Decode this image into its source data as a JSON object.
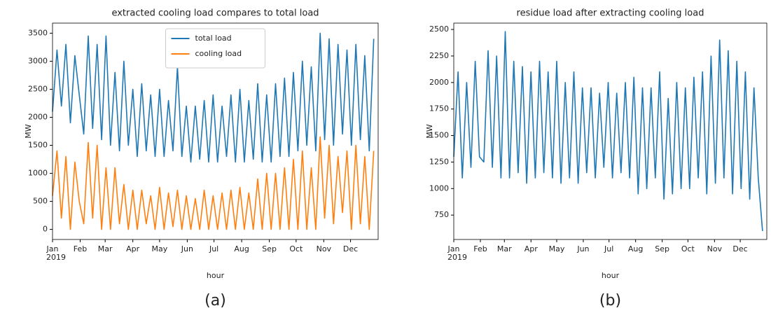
{
  "chart_data": [
    {
      "type": "line",
      "title": "extracted cooling load compares to total load",
      "caption": "(a)",
      "xlabel": "hour",
      "ylabel": "MW",
      "year_label": "2019",
      "legend": "upper center",
      "x": [
        0,
        120,
        240,
        360,
        480,
        600,
        720,
        840,
        960,
        1080,
        1200,
        1320,
        1440,
        1560,
        1680,
        1800,
        1920,
        2040,
        2160,
        2280,
        2400,
        2520,
        2640,
        2760,
        2880,
        3000,
        3120,
        3240,
        3360,
        3480,
        3600,
        3720,
        3840,
        3960,
        4080,
        4200,
        4320,
        4440,
        4560,
        4680,
        4800,
        4920,
        5040,
        5160,
        5280,
        5400,
        5520,
        5640,
        5760,
        5880,
        6000,
        6120,
        6240,
        6360,
        6480,
        6600,
        6720,
        6840,
        6960,
        7080,
        7200,
        7320,
        7440,
        7560,
        7680,
        7800,
        7920,
        8040,
        8160,
        8280,
        8400,
        8520,
        8640
      ],
      "xlim": [
        0,
        8759
      ],
      "xticks": [
        {
          "value": 0,
          "label": "Jan"
        },
        {
          "value": 744,
          "label": "Feb"
        },
        {
          "value": 1416,
          "label": "Mar"
        },
        {
          "value": 2160,
          "label": "Apr"
        },
        {
          "value": 2880,
          "label": "May"
        },
        {
          "value": 3624,
          "label": "Jun"
        },
        {
          "value": 4344,
          "label": "Jul"
        },
        {
          "value": 5088,
          "label": "Aug"
        },
        {
          "value": 5832,
          "label": "Sep"
        },
        {
          "value": 6552,
          "label": "Oct"
        },
        {
          "value": 7296,
          "label": "Nov"
        },
        {
          "value": 8016,
          "label": "Dec"
        }
      ],
      "ylim": [
        -180,
        3680
      ],
      "yticks": [
        0,
        500,
        1000,
        1500,
        2000,
        2500,
        3000,
        3500
      ],
      "series": [
        {
          "name": "total load",
          "color": "#1f77b4",
          "values": [
            2100,
            3200,
            2200,
            3300,
            1900,
            3100,
            2400,
            1700,
            3450,
            1800,
            3300,
            1600,
            3450,
            1500,
            2800,
            1400,
            3000,
            1500,
            2500,
            1300,
            2600,
            1400,
            2400,
            1300,
            2500,
            1300,
            2300,
            1400,
            2900,
            1300,
            2200,
            1200,
            2200,
            1250,
            2300,
            1200,
            2400,
            1200,
            2200,
            1300,
            2400,
            1200,
            2500,
            1200,
            2300,
            1250,
            2600,
            1200,
            2400,
            1200,
            2600,
            1300,
            2700,
            1300,
            2800,
            1400,
            3000,
            1500,
            2900,
            1400,
            3500,
            1600,
            3400,
            1500,
            3300,
            1700,
            3200,
            1500,
            3300,
            1600,
            3100,
            1400,
            3400
          ]
        },
        {
          "name": "cooling load",
          "color": "#ff7f0e",
          "values": [
            600,
            1400,
            200,
            1300,
            0,
            1200,
            500,
            100,
            1550,
            200,
            1500,
            0,
            1100,
            0,
            1100,
            100,
            800,
            0,
            700,
            0,
            700,
            100,
            600,
            0,
            750,
            0,
            650,
            50,
            700,
            0,
            600,
            0,
            550,
            0,
            700,
            0,
            600,
            0,
            650,
            0,
            700,
            0,
            750,
            0,
            650,
            0,
            900,
            0,
            1000,
            0,
            1000,
            0,
            1100,
            0,
            1250,
            0,
            1400,
            0,
            1100,
            0,
            1650,
            200,
            1500,
            100,
            1300,
            300,
            1400,
            0,
            1500,
            100,
            1300,
            0,
            1400
          ]
        }
      ]
    },
    {
      "type": "line",
      "title": "residue load after extracting cooling load",
      "caption": "(b)",
      "xlabel": "hour",
      "ylabel": "MW",
      "year_label": "2019",
      "x": [
        0,
        120,
        240,
        360,
        480,
        600,
        720,
        840,
        960,
        1080,
        1200,
        1320,
        1440,
        1560,
        1680,
        1800,
        1920,
        2040,
        2160,
        2280,
        2400,
        2520,
        2640,
        2760,
        2880,
        3000,
        3120,
        3240,
        3360,
        3480,
        3600,
        3720,
        3840,
        3960,
        4080,
        4200,
        4320,
        4440,
        4560,
        4680,
        4800,
        4920,
        5040,
        5160,
        5280,
        5400,
        5520,
        5640,
        5760,
        5880,
        6000,
        6120,
        6240,
        6360,
        6480,
        6600,
        6720,
        6840,
        6960,
        7080,
        7200,
        7320,
        7440,
        7560,
        7680,
        7800,
        7920,
        8040,
        8160,
        8280,
        8400,
        8520,
        8640
      ],
      "xlim": [
        0,
        8759
      ],
      "xticks": [
        {
          "value": 0,
          "label": "Jan"
        },
        {
          "value": 744,
          "label": "Feb"
        },
        {
          "value": 1416,
          "label": "Mar"
        },
        {
          "value": 2160,
          "label": "Apr"
        },
        {
          "value": 2880,
          "label": "May"
        },
        {
          "value": 3624,
          "label": "Jun"
        },
        {
          "value": 4344,
          "label": "Jul"
        },
        {
          "value": 5088,
          "label": "Aug"
        },
        {
          "value": 5832,
          "label": "Sep"
        },
        {
          "value": 6552,
          "label": "Oct"
        },
        {
          "value": 7296,
          "label": "Nov"
        },
        {
          "value": 8016,
          "label": "Dec"
        }
      ],
      "ylim": [
        520,
        2560
      ],
      "yticks": [
        750,
        1000,
        1250,
        1500,
        1750,
        2000,
        2250,
        2500
      ],
      "series": [
        {
          "color": "#1f77b4",
          "values": [
            1300,
            2100,
            1100,
            2000,
            1200,
            2200,
            1300,
            1250,
            2300,
            1200,
            2250,
            1100,
            2480,
            1100,
            2200,
            1150,
            2150,
            1050,
            2100,
            1100,
            2200,
            1150,
            2100,
            1100,
            2200,
            1050,
            2000,
            1100,
            2100,
            1050,
            1950,
            1150,
            1950,
            1100,
            1900,
            1200,
            2000,
            1100,
            1900,
            1150,
            2000,
            1100,
            2050,
            950,
            1950,
            1000,
            1950,
            1100,
            2100,
            900,
            1850,
            950,
            2000,
            1000,
            1950,
            1000,
            2050,
            1100,
            2100,
            950,
            2250,
            1050,
            2400,
            1100,
            2300,
            950,
            2200,
            1000,
            2100,
            900,
            1950,
            1100,
            600
          ]
        }
      ]
    }
  ]
}
